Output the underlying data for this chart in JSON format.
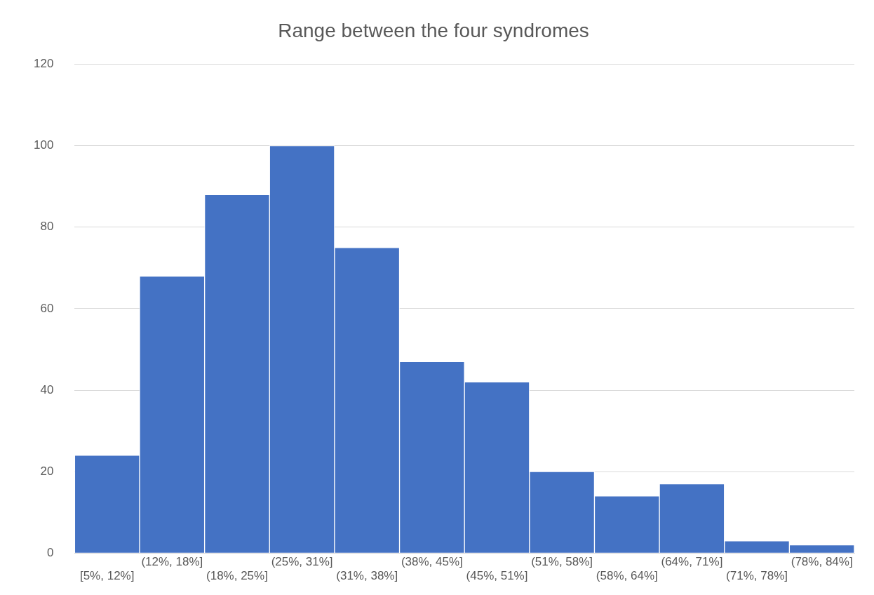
{
  "chart_data": {
    "type": "bar",
    "title": "Range between the four syndromes",
    "categories": [
      "[5%, 12%]",
      "(12%, 18%]",
      "(18%, 25%]",
      "(25%, 31%]",
      "(31%, 38%]",
      "(38%, 45%]",
      "(45%, 51%]",
      "(51%, 58%]",
      "(58%, 64%]",
      "(64%, 71%]",
      "(71%, 78%]",
      "(78%, 84%]"
    ],
    "values": [
      24,
      68,
      88,
      100,
      75,
      47,
      42,
      20,
      14,
      17,
      3,
      2
    ],
    "color": "#4472c4",
    "ylim": [
      0,
      120
    ],
    "yticks": [
      0,
      20,
      40,
      60,
      80,
      100,
      120
    ],
    "grid": "y",
    "legend": false
  }
}
